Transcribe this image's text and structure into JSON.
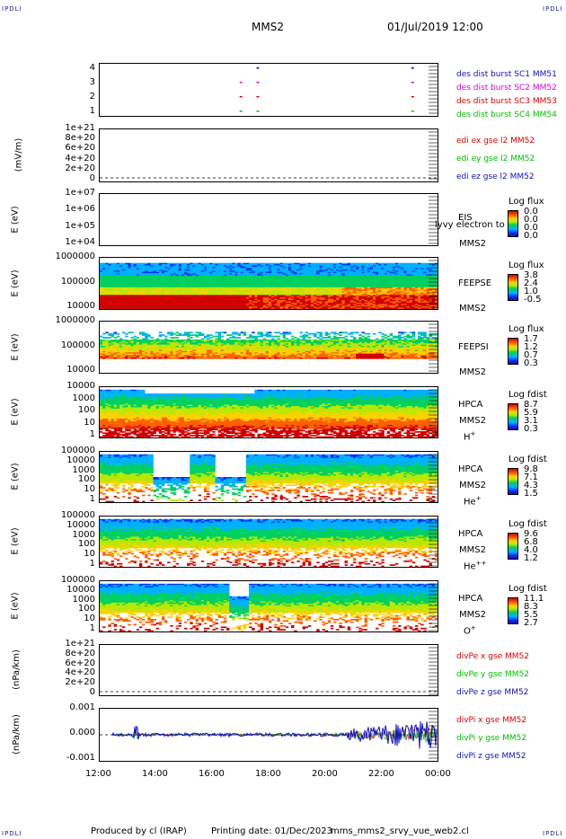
{
  "header": {
    "corner_left_top": "IPDLI",
    "corner_right_top": "IPDLI",
    "corner_left_bottom": "IPDLI",
    "corner_right_bottom": "IPDLI",
    "spacecraft": "MMS2",
    "datetime": "01/Jul/2019 12:00"
  },
  "footer": {
    "produced_by": "Produced by cl (IRAP)",
    "printing_date": "Printing date: 01/Dec/2023",
    "filename": "mms_mms2_srvy_vue_web2.cl"
  },
  "colors": {
    "blue": "#1010c0",
    "magenta": "#e000e0",
    "red": "#e00000",
    "green": "#00c000",
    "corner": "#1a1aa8"
  },
  "chart_data": [
    {
      "type": "scatter",
      "panel": "burst",
      "yticks": [
        "4",
        "3",
        "2",
        "1"
      ],
      "ylim": [
        0.5,
        4.5
      ],
      "legend": [
        {
          "label": "des dist burst SC1 MM51",
          "color": "#1010c0"
        },
        {
          "label": "des dist burst SC2 MM52",
          "color": "#e000e0"
        },
        {
          "label": "des dist burst SC3 MM53",
          "color": "#e00000"
        },
        {
          "label": "des dist burst SC4 MM54",
          "color": "#00c000"
        }
      ],
      "x_hours": [
        17.0,
        17.6,
        23.1
      ],
      "series_y": [
        4,
        3,
        2,
        1
      ]
    },
    {
      "type": "line",
      "panel": "edi_e",
      "ylabel": "(mV/m)",
      "yticks": [
        "1e+21",
        "8e+20",
        "6e+20",
        "4e+20",
        "2e+20",
        "0"
      ],
      "legend": [
        {
          "label": "edi ex gse l2 MM52",
          "color": "#e00000"
        },
        {
          "label": "edi ey gse l2 MM52",
          "color": "#00c000"
        },
        {
          "label": "edi ez gse l2 MM52",
          "color": "#1010c0"
        }
      ]
    },
    {
      "type": "heatmap",
      "panel": "eis",
      "ylabel": "E (eV)",
      "yticks": [
        "1e+07",
        "1e+06",
        "1e+05",
        "1e+04"
      ],
      "instrument": "EIS",
      "subtitle": "lyvy electron to",
      "spacecraft": "MMS2",
      "colorbar_title": "Log flux",
      "colorbar_ticks": [
        "0.0",
        "0.0",
        "0.0",
        "0.0"
      ]
    },
    {
      "type": "heatmap",
      "panel": "feeps_e",
      "ylabel": "E (eV)",
      "yticks": [
        "1000000",
        "100000",
        "10000"
      ],
      "instrument": "FEEPSE",
      "spacecraft": "MMS2",
      "colorbar_title": "Log flux",
      "colorbar_ticks": [
        "3.8",
        "2.4",
        "1.0",
        "-0.5"
      ]
    },
    {
      "type": "heatmap",
      "panel": "feeps_i",
      "ylabel": "E (eV)",
      "yticks": [
        "1000000",
        "100000",
        "10000"
      ],
      "instrument": "FEEPSI",
      "spacecraft": "MMS2",
      "colorbar_title": "Log flux",
      "colorbar_ticks": [
        "1.7",
        "1.2",
        "0.7",
        "0.3"
      ]
    },
    {
      "type": "heatmap",
      "panel": "hpca_h",
      "ylabel": "E (eV)",
      "yticks": [
        "10000",
        "1000",
        "100",
        "10",
        "1"
      ],
      "instrument": "HPCA",
      "spacecraft": "MMS2",
      "species": "H",
      "species_sup": "+",
      "colorbar_title": "Log fdist",
      "colorbar_ticks": [
        "8.7",
        "5.9",
        "3.1",
        "0.3"
      ]
    },
    {
      "type": "heatmap",
      "panel": "hpca_he",
      "ylabel": "E (eV)",
      "yticks": [
        "100000",
        "10000",
        "1000",
        "100",
        "10",
        "1"
      ],
      "instrument": "HPCA",
      "spacecraft": "MMS2",
      "species": "He",
      "species_sup": "+",
      "colorbar_title": "Log fdist",
      "colorbar_ticks": [
        "9.8",
        "7.1",
        "4.3",
        "1.5"
      ]
    },
    {
      "type": "heatmap",
      "panel": "hpca_hepp",
      "ylabel": "E (eV)",
      "yticks": [
        "100000",
        "10000",
        "1000",
        "100",
        "10",
        "1"
      ],
      "instrument": "HPCA",
      "spacecraft": "MMS2",
      "species": "He",
      "species_sup": "++",
      "colorbar_title": "Log fdist",
      "colorbar_ticks": [
        "9.6",
        "6.8",
        "4.0",
        "1.2"
      ]
    },
    {
      "type": "heatmap",
      "panel": "hpca_o",
      "ylabel": "E (eV)",
      "yticks": [
        "100000",
        "10000",
        "1000",
        "100",
        "10",
        "1"
      ],
      "instrument": "HPCA",
      "spacecraft": "MMS2",
      "species": "O",
      "species_sup": "+",
      "colorbar_title": "Log fdist",
      "colorbar_ticks": [
        "11.1",
        "8.3",
        "5.5",
        "2.7"
      ]
    },
    {
      "type": "line",
      "panel": "divpe",
      "ylabel": "(nPa/km)",
      "yticks": [
        "1e+21",
        "8e+20",
        "6e+20",
        "4e+20",
        "2e+20",
        "0"
      ],
      "legend": [
        {
          "label": "divPe x gse MM52",
          "color": "#e00000"
        },
        {
          "label": "divPe y gse MM52",
          "color": "#00c000"
        },
        {
          "label": "divPe z gse MM52",
          "color": "#1010c0"
        }
      ]
    },
    {
      "type": "line",
      "panel": "divpi",
      "ylabel": "(nPa/km)",
      "yticks": [
        "0.001",
        "0.000",
        "-0.001"
      ],
      "ylim": [
        -0.0015,
        0.0015
      ],
      "legend": [
        {
          "label": "divPi x gse MM52",
          "color": "#e00000"
        },
        {
          "label": "divPi y gse MM52",
          "color": "#00c000"
        },
        {
          "label": "divPi z gse MM52",
          "color": "#1010c0"
        }
      ]
    }
  ],
  "xaxis": {
    "ticks": [
      "12:00",
      "14:00",
      "16:00",
      "18:00",
      "20:00",
      "22:00",
      "00:00"
    ]
  }
}
